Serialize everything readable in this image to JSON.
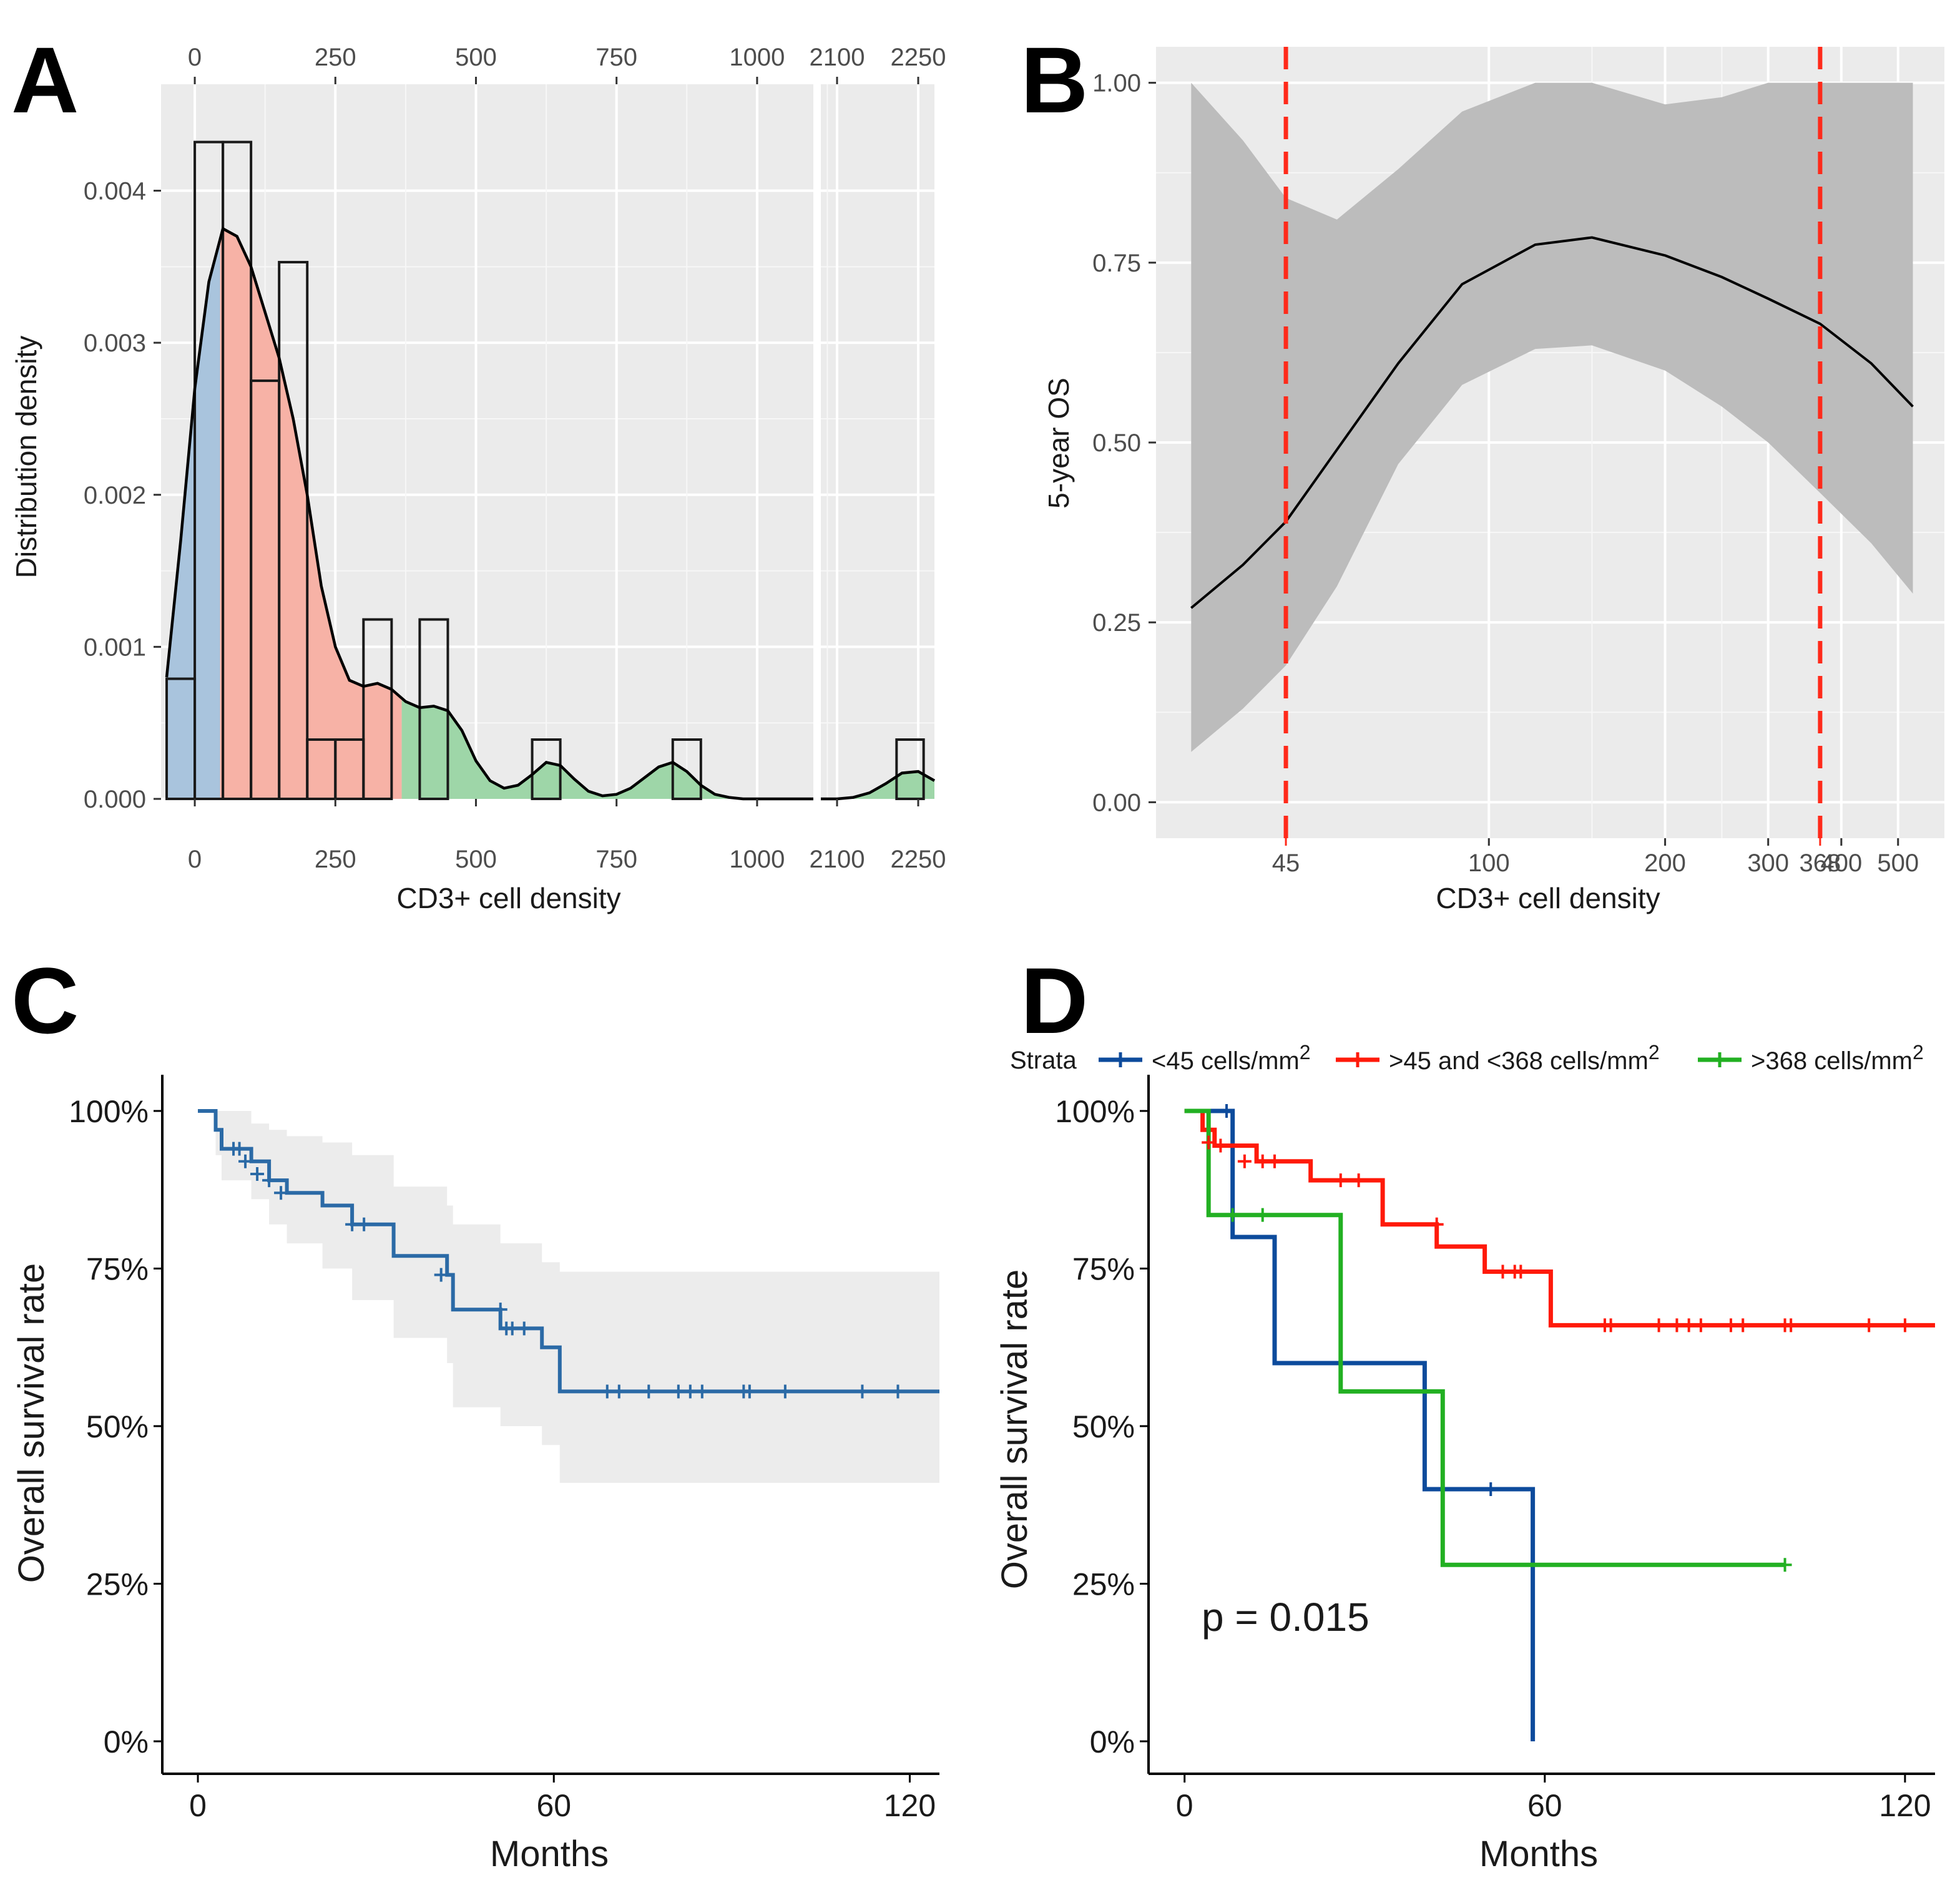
{
  "panels": {
    "A": {
      "letter": "A"
    },
    "B": {
      "letter": "B"
    },
    "C": {
      "letter": "C"
    },
    "D": {
      "letter": "D"
    }
  },
  "colors": {
    "low": "#a9c4dd",
    "mid": "#f7b2a6",
    "high": "#9ed6a8",
    "km_overall": "#2b6aa6",
    "strata_low": "#0d4b9c",
    "strata_mid": "#ff1a0a",
    "strata_high": "#22b022",
    "cutoff": "#ff2a1a",
    "panel_bg": "#ebebeb",
    "ci_band": "#bcbcbc"
  },
  "chart_data": [
    {
      "panel": "A",
      "type": "bar",
      "title": "",
      "xlabel": "CD3+ cell density",
      "ylabel": "Distribution density",
      "x_break": [
        1100,
        2070
      ],
      "xlim_left": [
        -60,
        1100
      ],
      "xlim_right": [
        2070,
        2280
      ],
      "ylim": [
        0,
        0.0047
      ],
      "x_ticks_left": [
        0,
        250,
        500,
        750,
        1000
      ],
      "x_ticks_right": [
        2100,
        2250
      ],
      "x_tick_labels": [
        "0",
        "250",
        "500",
        "750",
        "1000",
        "2100",
        "2250"
      ],
      "y_ticks": [
        0,
        0.001,
        0.002,
        0.003,
        0.004
      ],
      "y_tick_labels": [
        "0.000",
        "0.001",
        "0.002",
        "0.003",
        "0.004"
      ],
      "histogram": {
        "bin_width": 50,
        "bins": [
          {
            "left": -50,
            "value": 0.00079,
            "group": "low"
          },
          {
            "left": 0,
            "value": 0.00432,
            "group": "low"
          },
          {
            "left": 50,
            "value": 0.00432,
            "group": "mid"
          },
          {
            "left": 100,
            "value": 0.00275,
            "group": "mid"
          },
          {
            "left": 150,
            "value": 0.00353,
            "group": "mid"
          },
          {
            "left": 200,
            "value": 0.00039,
            "group": "mid"
          },
          {
            "left": 250,
            "value": 0.00039,
            "group": "mid"
          },
          {
            "left": 300,
            "value": 0.00118,
            "group": "mid"
          },
          {
            "left": 400,
            "value": 0.00118,
            "group": "high"
          },
          {
            "left": 600,
            "value": 0.00039,
            "group": "high"
          },
          {
            "left": 850,
            "value": 0.00039,
            "group": "high"
          },
          {
            "left": 2210,
            "value": 0.00039,
            "group": "high"
          }
        ]
      },
      "density_curve": {
        "x": [
          -50,
          -25,
          0,
          25,
          50,
          75,
          100,
          125,
          150,
          175,
          200,
          225,
          250,
          275,
          300,
          325,
          350,
          375,
          400,
          425,
          450,
          475,
          500,
          525,
          550,
          575,
          600,
          625,
          650,
          675,
          700,
          725,
          750,
          775,
          800,
          825,
          850,
          875,
          900,
          925,
          950,
          975,
          1000,
          1025,
          1050,
          1075,
          1100,
          2070,
          2100,
          2130,
          2160,
          2190,
          2220,
          2250,
          2280
        ],
        "y": [
          0.0008,
          0.0017,
          0.0027,
          0.0034,
          0.00375,
          0.0037,
          0.0035,
          0.0032,
          0.0029,
          0.0025,
          0.002,
          0.0014,
          0.001,
          0.00078,
          0.00074,
          0.00076,
          0.00072,
          0.00064,
          0.0006,
          0.00061,
          0.00058,
          0.00045,
          0.00025,
          0.00012,
          7e-05,
          9e-05,
          0.00016,
          0.00024,
          0.00022,
          0.00013,
          5e-05,
          2e-05,
          3e-05,
          7e-05,
          0.00014,
          0.00021,
          0.00024,
          0.00018,
          9e-05,
          3e-05,
          1e-05,
          0.0,
          0.0,
          0.0,
          0.0,
          0.0,
          0.0,
          0.0,
          0.0,
          1e-05,
          4e-05,
          0.0001,
          0.00017,
          0.00018,
          0.00012
        ]
      },
      "fill_groups": [
        {
          "name": "low",
          "range": [
            -50,
            45
          ]
        },
        {
          "name": "mid",
          "range": [
            45,
            368
          ]
        },
        {
          "name": "high",
          "range": [
            368,
            2280
          ]
        }
      ]
    },
    {
      "panel": "B",
      "type": "line",
      "title": "",
      "xlabel": "CD3+ cell density",
      "ylabel": "5-year OS",
      "x_scale": "log",
      "xlim": [
        27,
        600
      ],
      "ylim": [
        -0.05,
        1.05
      ],
      "x_ticks": [
        100,
        200,
        300,
        400,
        500
      ],
      "x_tick_labels": [
        "100",
        "200",
        "300",
        "400",
        "500"
      ],
      "y_ticks": [
        0,
        0.25,
        0.5,
        0.75,
        1.0
      ],
      "y_tick_labels": [
        "0.00",
        "0.25",
        "0.50",
        "0.75",
        "1.00"
      ],
      "cutoffs": [
        {
          "value": 45,
          "label": "45"
        },
        {
          "value": 368,
          "label": "368"
        }
      ],
      "series": [
        {
          "name": "5-year OS",
          "x": [
            31,
            38,
            45,
            55,
            70,
            90,
            120,
            150,
            200,
            250,
            300,
            368,
            450,
            530
          ],
          "y": [
            0.27,
            0.33,
            0.39,
            0.49,
            0.61,
            0.72,
            0.775,
            0.785,
            0.76,
            0.73,
            0.7,
            0.665,
            0.61,
            0.55
          ],
          "ci_lower": [
            0.07,
            0.13,
            0.19,
            0.3,
            0.47,
            0.58,
            0.63,
            0.635,
            0.6,
            0.55,
            0.5,
            0.43,
            0.36,
            0.29
          ],
          "ci_upper": [
            1.0,
            0.92,
            0.84,
            0.81,
            0.88,
            0.96,
            1.0,
            1.0,
            0.97,
            0.98,
            1.0,
            1.0,
            1.0,
            1.0
          ]
        }
      ]
    },
    {
      "panel": "C",
      "type": "line",
      "title": "",
      "xlabel": "Months",
      "ylabel": "Overall survival rate",
      "xlim": [
        -6,
        125
      ],
      "ylim": [
        0,
        1
      ],
      "x_ticks": [
        0,
        60,
        120
      ],
      "x_tick_labels": [
        "0",
        "60",
        "120"
      ],
      "y_ticks": [
        0,
        0.25,
        0.5,
        0.75,
        1.0
      ],
      "y_tick_labels": [
        "0%",
        "25%",
        "50%",
        "75%",
        "100%"
      ],
      "series": [
        {
          "name": "Overall",
          "steps_x": [
            0,
            3,
            4,
            9,
            12,
            15,
            21,
            26,
            33,
            42,
            43,
            51,
            58,
            61,
            125
          ],
          "steps_y": [
            1.0,
            0.97,
            0.94,
            0.92,
            0.89,
            0.87,
            0.85,
            0.82,
            0.77,
            0.74,
            0.685,
            0.655,
            0.625,
            0.555,
            0.555
          ],
          "ci_upper": [
            1.0,
            1.0,
            1.0,
            0.98,
            0.97,
            0.96,
            0.95,
            0.93,
            0.88,
            0.85,
            0.82,
            0.79,
            0.76,
            0.745,
            0.745
          ],
          "ci_lower": [
            1.0,
            0.93,
            0.89,
            0.86,
            0.82,
            0.79,
            0.75,
            0.7,
            0.64,
            0.6,
            0.53,
            0.5,
            0.47,
            0.41,
            0.41
          ],
          "censor_x": [
            6,
            7,
            8,
            10,
            12,
            14,
            26,
            28,
            41,
            51,
            52,
            53,
            55,
            69,
            71,
            76,
            81,
            83,
            85,
            92,
            93,
            99,
            112,
            118
          ],
          "censor_y": [
            0.94,
            0.94,
            0.92,
            0.9,
            0.89,
            0.87,
            0.82,
            0.82,
            0.74,
            0.685,
            0.655,
            0.655,
            0.655,
            0.555,
            0.555,
            0.555,
            0.555,
            0.555,
            0.555,
            0.555,
            0.555,
            0.555,
            0.555,
            0.555
          ]
        }
      ]
    },
    {
      "panel": "D",
      "type": "line",
      "title": "",
      "xlabel": "Months",
      "ylabel": "Overall survival rate",
      "xlim": [
        -6,
        125
      ],
      "ylim": [
        0,
        1
      ],
      "x_ticks": [
        0,
        60,
        120
      ],
      "x_tick_labels": [
        "0",
        "60",
        "120"
      ],
      "y_ticks": [
        0,
        0.25,
        0.5,
        0.75,
        1.0
      ],
      "y_tick_labels": [
        "0%",
        "25%",
        "50%",
        "75%",
        "100%"
      ],
      "legend_title": "Strata",
      "legend_position": "top",
      "annotation": "p = 0.015",
      "series": [
        {
          "name": "<45 cells/mm",
          "sup": "2",
          "color_key": "strata_low",
          "steps_x": [
            0,
            8,
            15,
            40,
            58
          ],
          "steps_y": [
            1.0,
            0.8,
            0.6,
            0.4,
            0.0
          ],
          "censor_x": [
            7,
            51
          ],
          "censor_y": [
            1.0,
            0.4
          ]
        },
        {
          "name": ">45 and <368 cells/mm",
          "sup": "2",
          "color_key": "strata_mid",
          "steps_x": [
            0,
            3,
            5,
            12,
            21,
            33,
            42,
            50,
            61,
            125
          ],
          "steps_y": [
            1.0,
            0.97,
            0.945,
            0.92,
            0.89,
            0.82,
            0.785,
            0.745,
            0.66,
            0.66
          ],
          "censor_x": [
            4,
            6,
            10,
            13,
            15,
            26,
            29,
            42,
            53,
            55,
            56,
            70,
            71,
            79,
            82,
            84,
            86,
            91,
            93,
            100,
            101,
            114,
            120
          ],
          "censor_y": [
            0.95,
            0.945,
            0.92,
            0.92,
            0.92,
            0.89,
            0.89,
            0.82,
            0.745,
            0.745,
            0.745,
            0.66,
            0.66,
            0.66,
            0.66,
            0.66,
            0.66,
            0.66,
            0.66,
            0.66,
            0.66,
            0.66,
            0.66
          ]
        },
        {
          "name": ">368 cells/mm",
          "sup": "2",
          "color_key": "strata_high",
          "steps_x": [
            0,
            4,
            26,
            43,
            100
          ],
          "steps_y": [
            1.0,
            0.835,
            0.555,
            0.28,
            0.28
          ],
          "censor_x": [
            8,
            13,
            100
          ],
          "censor_y": [
            0.835,
            0.835,
            0.28
          ]
        }
      ]
    }
  ]
}
